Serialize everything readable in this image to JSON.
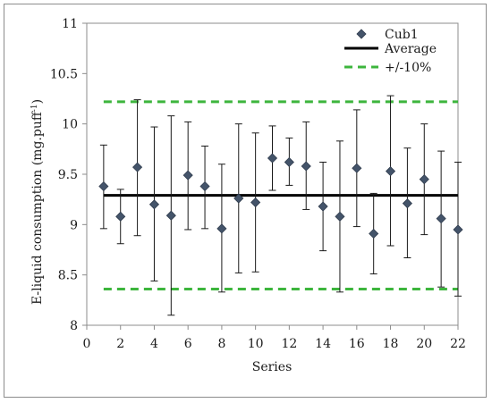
{
  "chart_data": {
    "type": "scatter",
    "xlabel": "Series",
    "ylabel_main": "E-liquid consumption (mg.puff",
    "ylabel_sup": "-1",
    "ylabel_end": ")",
    "xlim": [
      0,
      22
    ],
    "ylim": [
      8,
      11
    ],
    "x_ticks": [
      "0",
      "2",
      "4",
      "6",
      "8",
      "10",
      "12",
      "14",
      "16",
      "18",
      "20",
      "22"
    ],
    "y_ticks": [
      "8",
      "8.5",
      "9",
      "9.5",
      "10",
      "10.5",
      "11"
    ],
    "grid": false,
    "legend_position": "top-right",
    "series": [
      {
        "name": "Cub1",
        "marker": "diamond",
        "color": "#44546a",
        "x": [
          1,
          2,
          3,
          4,
          5,
          6,
          7,
          8,
          9,
          10,
          11,
          12,
          13,
          14,
          15,
          16,
          17,
          18,
          19,
          20,
          21,
          22
        ],
        "y": [
          9.38,
          9.08,
          9.57,
          9.2,
          9.09,
          9.49,
          9.38,
          8.96,
          9.26,
          9.22,
          9.66,
          9.62,
          9.58,
          9.18,
          9.08,
          9.56,
          8.91,
          9.53,
          9.21,
          9.45,
          9.06,
          8.95
        ],
        "err_low": [
          8.96,
          8.81,
          8.89,
          8.44,
          8.1,
          8.95,
          8.96,
          8.33,
          8.52,
          8.53,
          9.34,
          9.39,
          9.15,
          8.74,
          8.33,
          8.98,
          8.51,
          8.79,
          8.67,
          8.9,
          8.38,
          8.29
        ],
        "err_high": [
          9.79,
          9.35,
          10.24,
          9.97,
          10.08,
          10.02,
          9.78,
          9.6,
          10.0,
          9.91,
          9.98,
          9.86,
          10.02,
          9.62,
          9.83,
          10.14,
          9.31,
          10.28,
          9.76,
          10.0,
          9.73,
          9.62
        ]
      }
    ],
    "lines": [
      {
        "name": "Average",
        "value": 9.29,
        "color": "#000000",
        "style": "solid"
      },
      {
        "name": "+/-10%",
        "values": [
          8.36,
          10.22
        ],
        "color": "#3db53d",
        "style": "dashed"
      }
    ]
  }
}
